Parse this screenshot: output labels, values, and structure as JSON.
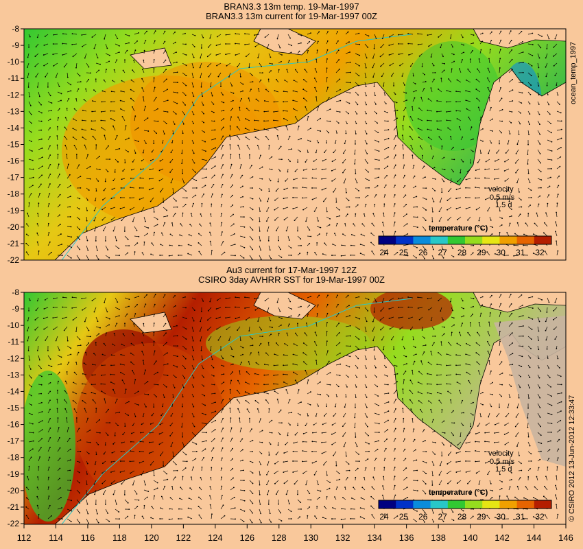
{
  "top_panel": {
    "title_line1": "BRAN3.3 13m temp. 19-Mar-1997",
    "title_line2": "BRAN3.3 13m current for 19-Mar-1997 00Z",
    "side_label": "ocean_temp_1997",
    "velocity_label": "velocity",
    "velocity_scale": "0.5 m/s",
    "velocity_time": "1.5 d",
    "colorbar_title": "temperature (°C)"
  },
  "bottom_panel": {
    "title_line1": "Au3 current for 17-Mar-1997 12Z",
    "title_line2": "CSIRO 3day AVHRR SST for 19-Mar-1997 00Z",
    "side_label": "© CSIRO 2012 13-Jun-2012 12:33:47",
    "velocity_label": "velocity",
    "velocity_scale": "0.5 m/s",
    "velocity_time": "1.5 d",
    "colorbar_title": "temperature (°C)"
  },
  "lat_ticks": [
    "-8",
    "-9",
    "-10",
    "-11",
    "-12",
    "-13",
    "-14",
    "-15",
    "-16",
    "-17",
    "-18",
    "-19",
    "-20",
    "-21",
    "-22"
  ],
  "lon_ticks": [
    "112",
    "114",
    "116",
    "118",
    "120",
    "122",
    "124",
    "126",
    "128",
    "130",
    "132",
    "134",
    "136",
    "138",
    "140",
    "142",
    "144",
    "146"
  ],
  "colorbar": {
    "labels": [
      "24",
      "25",
      "26",
      "27",
      "28",
      "29",
      "30",
      "31",
      "32"
    ],
    "colors": [
      "#000080",
      "#0032c8",
      "#0a8cdc",
      "#28c8c8",
      "#32c832",
      "#96dc1e",
      "#e6e614",
      "#f0a000",
      "#e66400",
      "#b41e00"
    ]
  },
  "colors": {
    "land": "#f9c89b",
    "cloud": "#c8b4a0"
  }
}
